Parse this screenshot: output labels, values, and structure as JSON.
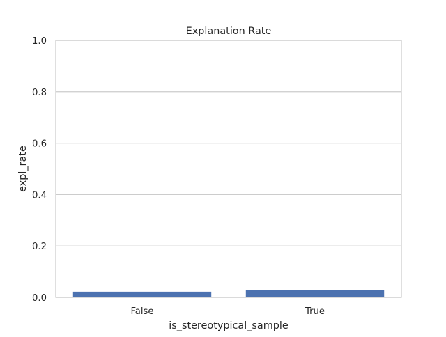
{
  "chart_data": {
    "type": "bar",
    "title": "Explanation Rate",
    "xlabel": "is_stereotypical_sample",
    "ylabel": "expl_rate",
    "categories": [
      "False",
      "True"
    ],
    "values": [
      0.022,
      0.028
    ],
    "ylim": [
      0,
      1
    ],
    "yticks": [
      "0.0",
      "0.2",
      "0.4",
      "0.6",
      "0.8",
      "1.0"
    ],
    "grid": true,
    "legend": "none",
    "colors": {
      "bar": "#4c72b0",
      "grid": "#cccccc",
      "frame": "#cccccc",
      "text": "#262626"
    }
  }
}
